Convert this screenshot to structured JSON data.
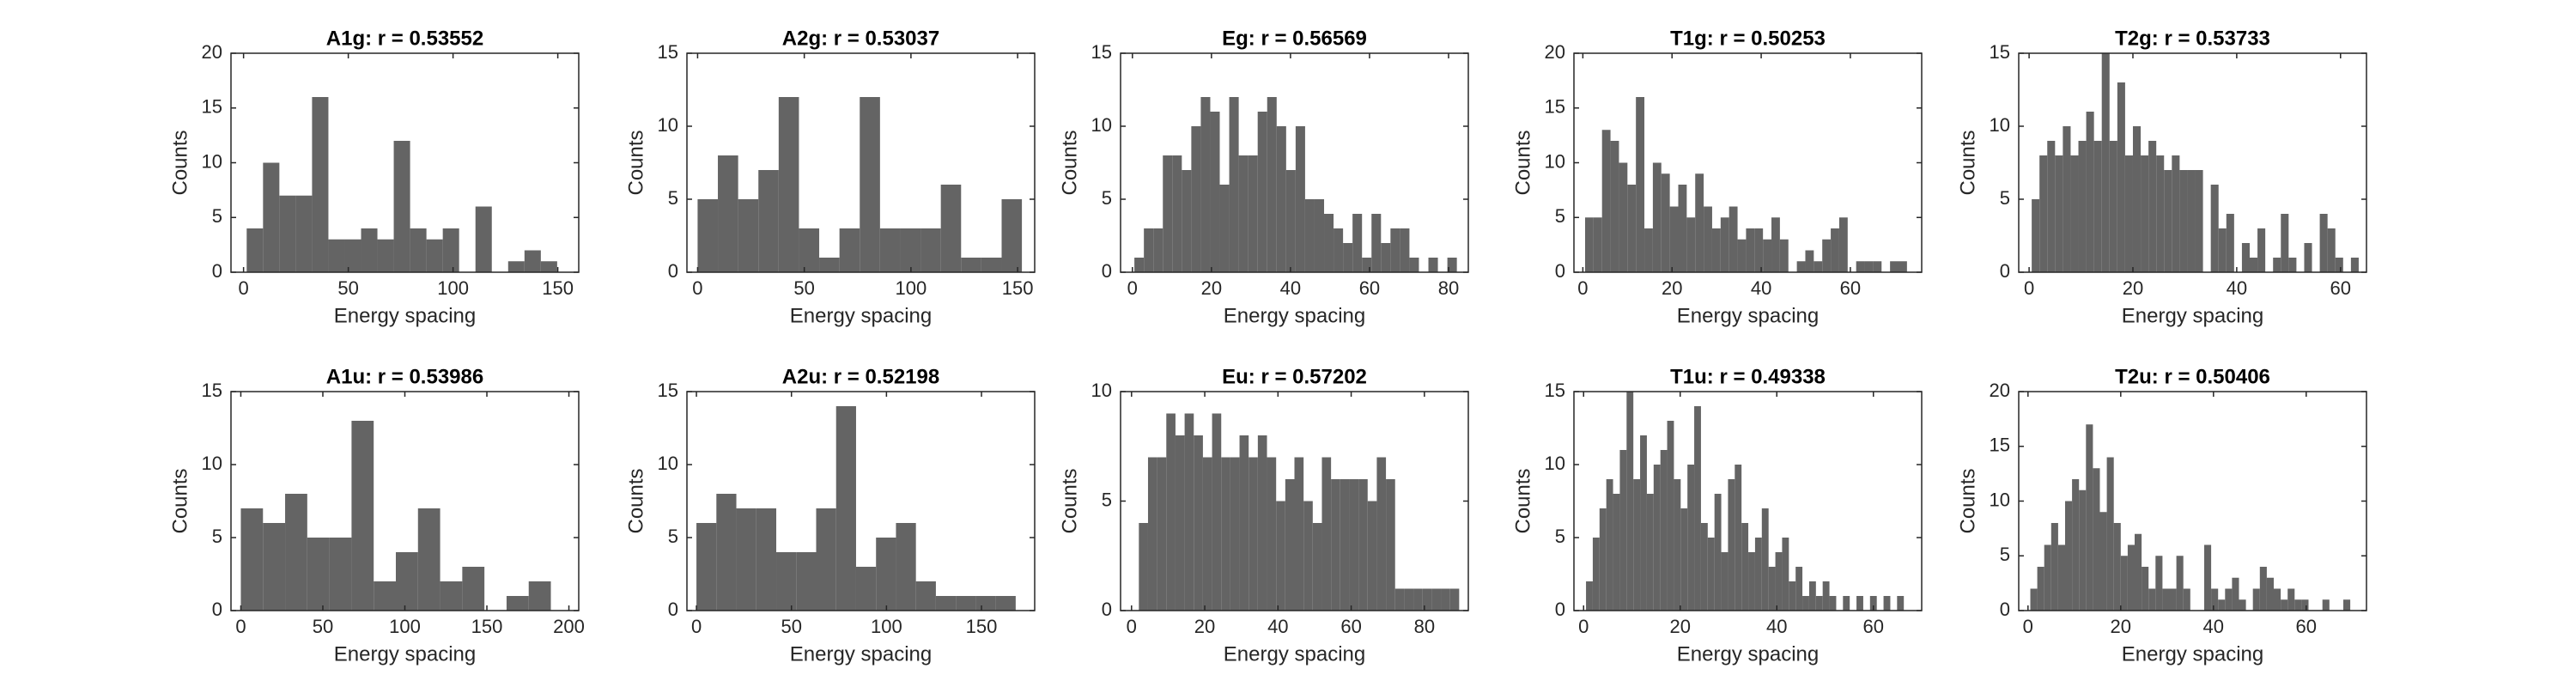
{
  "chart_data": [
    {
      "type": "histogram",
      "title": "A1g: r = 0.53552",
      "xlabel": "Energy spacing",
      "ylabel": "Counts",
      "color": "#646464",
      "bins": [
        1.5,
        9.3,
        17.1,
        24.9,
        32.7,
        40.5,
        48.3,
        56.1,
        63.9,
        71.7,
        79.5,
        87.3,
        95.1,
        102.9,
        110.7,
        118.5,
        126.3,
        134.1,
        141.9,
        149.7
      ],
      "values": [
        4,
        10,
        7,
        7,
        16,
        3,
        3,
        4,
        3,
        12,
        4,
        3,
        4,
        0,
        6,
        0,
        1,
        2,
        1
      ],
      "xlim": [
        -6,
        160
      ],
      "ylim": [
        0,
        20
      ],
      "xticks": [
        0,
        50,
        100,
        150
      ],
      "yticks": [
        0,
        5,
        10,
        15,
        20
      ]
    },
    {
      "type": "histogram",
      "title": "A2g: r = 0.53037",
      "xlabel": "Energy spacing",
      "ylabel": "Counts",
      "color": "#646464",
      "bins": [
        0,
        9.5,
        19,
        28.5,
        38,
        47.5,
        57,
        66.5,
        76,
        85.5,
        95,
        104.5,
        114,
        123.5,
        133,
        142.5,
        152
      ],
      "values": [
        5,
        8,
        5,
        7,
        12,
        3,
        1,
        3,
        12,
        3,
        3,
        3,
        6,
        1,
        1,
        5
      ],
      "xlim": [
        -5,
        158
      ],
      "ylim": [
        0,
        15
      ],
      "xticks": [
        0,
        50,
        100,
        150
      ],
      "yticks": [
        0,
        5,
        10,
        15
      ]
    },
    {
      "type": "histogram",
      "title": "Eg: r = 0.56569",
      "xlabel": "Energy spacing",
      "ylabel": "Counts",
      "color": "#646464",
      "bins": [
        0.5,
        2.9,
        5.3,
        7.7,
        10.1,
        12.5,
        14.9,
        17.3,
        19.7,
        22.1,
        24.5,
        26.9,
        29.3,
        31.7,
        34.1,
        36.5,
        38.9,
        41.3,
        43.7,
        46.1,
        48.5,
        50.9,
        53.3,
        55.7,
        58.1,
        60.5,
        62.9,
        65.3,
        67.7,
        70.1,
        72.5,
        74.9,
        77.3,
        79.7,
        82.1
      ],
      "values": [
        1,
        3,
        3,
        8,
        8,
        7,
        10,
        12,
        11,
        6,
        12,
        8,
        8,
        11,
        12,
        10,
        7,
        10,
        5,
        5,
        4,
        3,
        2,
        4,
        1,
        4,
        2,
        3,
        3,
        1,
        0,
        1,
        0,
        1
      ],
      "xlim": [
        -3,
        85
      ],
      "ylim": [
        0,
        15
      ],
      "xticks": [
        0,
        20,
        40,
        60,
        80
      ],
      "yticks": [
        0,
        5,
        10,
        15
      ]
    },
    {
      "type": "histogram",
      "title": "T1g: r = 0.50253",
      "xlabel": "Energy spacing",
      "ylabel": "Counts",
      "color": "#646464",
      "bins": [
        0.5,
        2.4,
        4.3,
        6.2,
        8.1,
        10,
        11.9,
        13.8,
        15.7,
        17.6,
        19.5,
        21.4,
        23.3,
        25.2,
        27.1,
        29,
        30.9,
        32.8,
        34.7,
        36.6,
        38.5,
        40.4,
        42.3,
        44.2,
        46.1,
        48,
        49.9,
        51.8,
        53.7,
        55.6,
        57.5,
        59.4,
        61.3,
        63.2,
        65.1,
        67,
        68.9,
        70.8,
        72.7
      ],
      "values": [
        5,
        5,
        13,
        12,
        10,
        8,
        16,
        4,
        10,
        9,
        6,
        8,
        5,
        9,
        6,
        4,
        5,
        6,
        3,
        4,
        4,
        3,
        5,
        3,
        0,
        1,
        2,
        1,
        3,
        4,
        5,
        0,
        1,
        1,
        1,
        0,
        1,
        1
      ],
      "xlim": [
        -2,
        76
      ],
      "ylim": [
        0,
        20
      ],
      "xticks": [
        0,
        20,
        40,
        60
      ],
      "yticks": [
        0,
        5,
        10,
        15,
        20
      ]
    },
    {
      "type": "histogram",
      "title": "T2g: r = 0.53733",
      "xlabel": "Energy spacing",
      "ylabel": "Counts",
      "color": "#646464",
      "bins": [
        0.5,
        2,
        3.5,
        5,
        6.5,
        8,
        9.5,
        11,
        12.5,
        14,
        15.5,
        17,
        18.5,
        20,
        21.5,
        23,
        24.5,
        26,
        27.5,
        29,
        30.5,
        32,
        33.5,
        35,
        36.5,
        38,
        39.5,
        41,
        42.5,
        44,
        45.5,
        47,
        48.5,
        50,
        51.5,
        53,
        54.5,
        56,
        57.5,
        59,
        60.5,
        62,
        63.5
      ],
      "values": [
        5,
        8,
        9,
        8,
        10,
        8,
        9,
        11,
        9,
        15,
        9,
        13,
        8,
        10,
        8,
        9,
        8,
        7,
        8,
        7,
        7,
        7,
        0,
        6,
        3,
        4,
        0,
        2,
        1,
        3,
        0,
        1,
        4,
        1,
        0,
        2,
        0,
        4,
        3,
        1,
        0,
        1
      ],
      "xlim": [
        -2,
        65
      ],
      "ylim": [
        0,
        15
      ],
      "xticks": [
        0,
        20,
        40,
        60
      ],
      "yticks": [
        0,
        5,
        10,
        15
      ]
    },
    {
      "type": "histogram",
      "title": "A1u: r = 0.53986",
      "xlabel": "Energy spacing",
      "ylabel": "Counts",
      "color": "#646464",
      "bins": [
        0,
        13.5,
        27,
        40.5,
        54,
        67.5,
        81,
        94.5,
        108,
        121.5,
        135,
        148.5,
        162,
        175.5,
        189
      ],
      "values": [
        7,
        6,
        8,
        5,
        5,
        13,
        2,
        4,
        7,
        2,
        3,
        0,
        1,
        2
      ],
      "xlim": [
        -6,
        206
      ],
      "ylim": [
        0,
        15
      ],
      "xticks": [
        0,
        50,
        100,
        150,
        200
      ],
      "yticks": [
        0,
        5,
        10,
        15
      ]
    },
    {
      "type": "histogram",
      "title": "A2u: r = 0.52198",
      "xlabel": "Energy spacing",
      "ylabel": "Counts",
      "color": "#646464",
      "bins": [
        0,
        10.5,
        21,
        31.5,
        42,
        52.5,
        63,
        73.5,
        84,
        94.5,
        105,
        115.5,
        126,
        136.5,
        147,
        157.5,
        168
      ],
      "values": [
        6,
        8,
        7,
        7,
        4,
        4,
        7,
        14,
        3,
        5,
        6,
        2,
        1,
        1,
        1,
        1
      ],
      "xlim": [
        -5,
        178
      ],
      "ylim": [
        0,
        15
      ],
      "xticks": [
        0,
        50,
        100,
        150
      ],
      "yticks": [
        0,
        5,
        10,
        15
      ]
    },
    {
      "type": "histogram",
      "title": "Eu: r = 0.57202",
      "xlabel": "Energy spacing",
      "ylabel": "Counts",
      "color": "#646464",
      "bins": [
        2,
        4.5,
        7,
        9.5,
        12,
        14.5,
        17,
        19.5,
        22,
        24.5,
        27,
        29.5,
        32,
        34.5,
        37,
        39.5,
        42,
        44.5,
        47,
        49.5,
        52,
        54.5,
        57,
        59.5,
        62,
        64.5,
        67,
        69.5,
        72,
        74.5,
        77,
        79.5,
        82,
        84.5,
        87,
        89.5
      ],
      "values": [
        4,
        7,
        7,
        9,
        8,
        9,
        8,
        7,
        9,
        7,
        7,
        8,
        7,
        8,
        7,
        5,
        6,
        7,
        5,
        4,
        7,
        6,
        6,
        6,
        6,
        5,
        7,
        6,
        1,
        1,
        1,
        1,
        1,
        1,
        1
      ],
      "xlim": [
        -3,
        92
      ],
      "ylim": [
        0,
        10
      ],
      "xticks": [
        0,
        20,
        40,
        60,
        80
      ],
      "yticks": [
        0,
        5,
        10
      ]
    },
    {
      "type": "histogram",
      "title": "T1u: r = 0.49338",
      "xlabel": "Energy spacing",
      "ylabel": "Counts",
      "color": "#646464",
      "bins": [
        0.5,
        1.9,
        3.3,
        4.7,
        6.1,
        7.5,
        8.9,
        10.3,
        11.7,
        13.1,
        14.5,
        15.9,
        17.3,
        18.7,
        20.1,
        21.5,
        22.9,
        24.3,
        25.7,
        27.1,
        28.5,
        29.9,
        31.3,
        32.7,
        34.1,
        35.5,
        36.9,
        38.3,
        39.7,
        41.1,
        42.5,
        43.9,
        45.3,
        46.7,
        48.1,
        49.5,
        50.9,
        52.3,
        53.7,
        55.1,
        56.5,
        57.9,
        59.3,
        60.7,
        62.1,
        63.5,
        64.9,
        66.3
      ],
      "values": [
        2,
        5,
        7,
        9,
        8,
        11,
        15,
        9,
        12,
        8,
        10,
        11,
        13,
        9,
        7,
        10,
        14,
        6,
        5,
        8,
        4,
        9,
        10,
        6,
        4,
        5,
        7,
        3,
        4,
        5,
        2,
        3,
        1,
        2,
        1,
        2,
        1,
        0,
        1,
        0,
        1,
        0,
        1,
        0,
        1,
        0,
        1
      ],
      "xlim": [
        -2,
        70
      ],
      "ylim": [
        0,
        15
      ],
      "xticks": [
        0,
        20,
        40,
        60
      ],
      "yticks": [
        0,
        5,
        10,
        15
      ]
    },
    {
      "type": "histogram",
      "title": "T2u: r = 0.50406",
      "xlabel": "Energy spacing",
      "ylabel": "Counts",
      "color": "#646464",
      "bins": [
        0.5,
        2,
        3.5,
        5,
        6.5,
        8,
        9.5,
        11,
        12.5,
        14,
        15.5,
        17,
        18.5,
        20,
        21.5,
        23,
        24.5,
        26,
        27.5,
        29,
        30.5,
        32,
        33.5,
        35,
        36.5,
        38,
        39.5,
        41,
        42.5,
        44,
        45.5,
        47,
        48.5,
        50,
        51.5,
        53,
        54.5,
        56,
        57.5,
        59,
        60.5,
        62,
        63.5,
        65,
        66.5,
        68,
        69.5
      ],
      "values": [
        2,
        4,
        6,
        8,
        6,
        10,
        12,
        11,
        17,
        13,
        9,
        14,
        8,
        5,
        6,
        7,
        4,
        2,
        5,
        2,
        2,
        5,
        2,
        0,
        0,
        6,
        2,
        1,
        2,
        3,
        1,
        0,
        2,
        4,
        3,
        2,
        1,
        2,
        1,
        1,
        0,
        0,
        1,
        0,
        0,
        1
      ],
      "xlim": [
        -2,
        73
      ],
      "ylim": [
        0,
        20
      ],
      "xticks": [
        0,
        20,
        40,
        60
      ],
      "yticks": [
        0,
        5,
        10,
        15,
        20
      ]
    }
  ]
}
